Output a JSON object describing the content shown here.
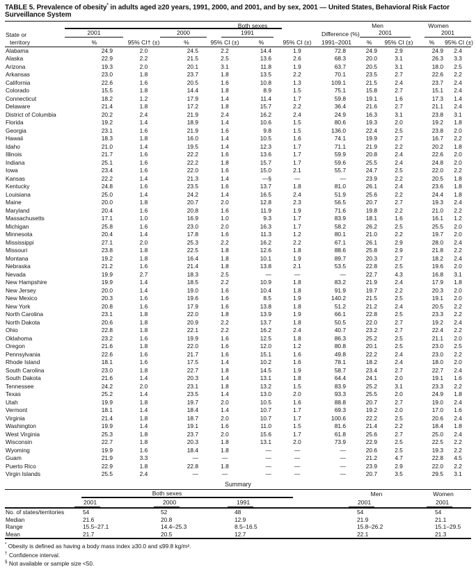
{
  "title": {
    "part1": "TABLE 5. Prevalence of obesity",
    "sup": "*",
    "part2": " in adults aged ≥20 years, 1991, 2000, and 2001, and by sex, 2001 — United States, Behavioral Risk Factor Surveillance System"
  },
  "table": {
    "header": {
      "state_line1": "State or",
      "state_line2": "territory",
      "both_sexes": "Both sexes",
      "men": "Men",
      "women": "Women",
      "y2001": "2001",
      "y2000": "2000",
      "y1991": "1991",
      "difference": "Difference (%)",
      "diff_sub": "1991–2001",
      "pct": "%",
      "ci_dagger": "95% CI† (±)",
      "ci": "95% CI (±)"
    },
    "rows": [
      {
        "state": "Alabama",
        "v": [
          "24.9",
          "2.0",
          "24.5",
          "2.2",
          "14.4",
          "1.9",
          "72.8",
          "24.9",
          "2.9",
          "24.9",
          "2.4"
        ]
      },
      {
        "state": "Alaska",
        "v": [
          "22.9",
          "2.2",
          "21.5",
          "2.5",
          "13.6",
          "2.6",
          "68.3",
          "20.0",
          "3.1",
          "26.3",
          "3.3"
        ]
      },
      {
        "state": "Arizona",
        "v": [
          "19.3",
          "2.0",
          "20.1",
          "3.1",
          "11.8",
          "1.9",
          "63.7",
          "20.5",
          "3.1",
          "18.0",
          "2.5"
        ]
      },
      {
        "state": "Arkansas",
        "v": [
          "23.0",
          "1.8",
          "23.7",
          "1.8",
          "13.5",
          "2.2",
          "70.1",
          "23.5",
          "2.7",
          "22.6",
          "2.2"
        ]
      },
      {
        "state": "California",
        "v": [
          "22.6",
          "1.6",
          "20.5",
          "1.6",
          "10.8",
          "1.3",
          "109.1",
          "21.5",
          "2.4",
          "23.7",
          "2.4"
        ]
      },
      {
        "state": "Colorado",
        "v": [
          "15.5",
          "1.8",
          "14.4",
          "1.8",
          "8.9",
          "1.5",
          "75.1",
          "15.8",
          "2.7",
          "15.1",
          "2.4"
        ]
      },
      {
        "state": "Connecticut",
        "v": [
          "18.2",
          "1.2",
          "17.9",
          "1.4",
          "11.4",
          "1.7",
          "59.8",
          "19.1",
          "1.6",
          "17.3",
          "1.4"
        ]
      },
      {
        "state": "Delaware",
        "v": [
          "21.4",
          "1.8",
          "17.2",
          "1.8",
          "15.7",
          "2.2",
          "36.4",
          "21.6",
          "2.7",
          "21.1",
          "2.4"
        ]
      },
      {
        "state": "District of Columbia",
        "v": [
          "20.2",
          "2.4",
          "21.9",
          "2.4",
          "16.2",
          "2.4",
          "24.9",
          "16.3",
          "3.1",
          "23.8",
          "3.1"
        ]
      },
      {
        "state": "Florida",
        "v": [
          "19.2",
          "1.4",
          "18.9",
          "1.4",
          "10.6",
          "1.5",
          "80.6",
          "19.3",
          "2.0",
          "19.2",
          "1.8"
        ]
      },
      {
        "state": "Georgia",
        "v": [
          "23.1",
          "1.6",
          "21.9",
          "1.6",
          "9.8",
          "1.5",
          "136.0",
          "22.4",
          "2.5",
          "23.8",
          "2.0"
        ]
      },
      {
        "state": "Hawaii",
        "v": [
          "18.3",
          "1.8",
          "16.0",
          "1.4",
          "10.5",
          "1.6",
          "74.1",
          "19.9",
          "2.7",
          "16.7",
          "2.2"
        ]
      },
      {
        "state": "Idaho",
        "v": [
          "21.0",
          "1.4",
          "19.5",
          "1.4",
          "12.3",
          "1.7",
          "71.1",
          "21.9",
          "2.2",
          "20.2",
          "1.8"
        ]
      },
      {
        "state": "Illinois",
        "v": [
          "21.7",
          "1.6",
          "22.2",
          "1.6",
          "13.6",
          "1.7",
          "59.9",
          "20.8",
          "2.4",
          "22.6",
          "2.0"
        ]
      },
      {
        "state": "Indiana",
        "v": [
          "25.1",
          "1.6",
          "22.2",
          "1.8",
          "15.7",
          "1.7",
          "59.6",
          "25.5",
          "2.4",
          "24.8",
          "2.0"
        ]
      },
      {
        "state": "Iowa",
        "v": [
          "23.4",
          "1.6",
          "22.0",
          "1.6",
          "15.0",
          "2.1",
          "55.7",
          "24.7",
          "2.5",
          "22.0",
          "2.2"
        ]
      },
      {
        "state": "Kansas",
        "v": [
          "22.2",
          "1.4",
          "21.3",
          "1.4",
          "—§",
          "—",
          "—",
          "23.9",
          "2.2",
          "20.5",
          "1.8"
        ]
      },
      {
        "state": "Kentucky",
        "v": [
          "24.8",
          "1.6",
          "23.5",
          "1.6",
          "13.7",
          "1.8",
          "81.0",
          "26.1",
          "2.4",
          "23.6",
          "1.8"
        ]
      },
      {
        "state": "Louisiana",
        "v": [
          "25.0",
          "1.4",
          "24.2",
          "1.4",
          "16.5",
          "2.4",
          "51.9",
          "25.6",
          "2.2",
          "24.4",
          "1.8"
        ]
      },
      {
        "state": "Maine",
        "v": [
          "20.0",
          "1.8",
          "20.7",
          "2.0",
          "12.8",
          "2.3",
          "56.5",
          "20.7",
          "2.7",
          "19.3",
          "2.4"
        ]
      },
      {
        "state": "Maryland",
        "v": [
          "20.4",
          "1.6",
          "20.8",
          "1.6",
          "11.9",
          "1.9",
          "71.6",
          "19.8",
          "2.2",
          "21.0",
          "2.2"
        ]
      },
      {
        "state": "Massachusetts",
        "v": [
          "17.1",
          "1.0",
          "16.9",
          "1.0",
          "9.3",
          "1.7",
          "83.9",
          "18.1",
          "1.6",
          "16.1",
          "1.2"
        ]
      },
      {
        "state": "Michigan",
        "v": [
          "25.8",
          "1.6",
          "23.0",
          "2.0",
          "16.3",
          "1.7",
          "58.2",
          "26.2",
          "2.5",
          "25.5",
          "2.0"
        ]
      },
      {
        "state": "Minnesota",
        "v": [
          "20.4",
          "1.4",
          "17.8",
          "1.6",
          "11.3",
          "1.2",
          "80.1",
          "21.0",
          "2.2",
          "19.7",
          "2.0"
        ]
      },
      {
        "state": "Mississippi",
        "v": [
          "27.1",
          "2.0",
          "25.3",
          "2.2",
          "16.2",
          "2.2",
          "67.1",
          "26.1",
          "2.9",
          "28.0",
          "2.4"
        ]
      },
      {
        "state": "Missouri",
        "v": [
          "23.8",
          "1.8",
          "22.5",
          "1.8",
          "12.6",
          "1.8",
          "88.6",
          "25.8",
          "2.9",
          "21.8",
          "2.2"
        ]
      },
      {
        "state": "Montana",
        "v": [
          "19.2",
          "1.8",
          "16.4",
          "1.8",
          "10.1",
          "1.9",
          "89.7",
          "20.3",
          "2.7",
          "18.2",
          "2.4"
        ]
      },
      {
        "state": "Nebraska",
        "v": [
          "21.2",
          "1.6",
          "21.4",
          "1.8",
          "13.8",
          "2.1",
          "53.5",
          "22.8",
          "2.5",
          "19.6",
          "2.0"
        ]
      },
      {
        "state": "Nevada",
        "v": [
          "19.9",
          "2.7",
          "18.3",
          "2.5",
          "—",
          "—",
          "—",
          "22.7",
          "4.3",
          "16.8",
          "3.1"
        ]
      },
      {
        "state": "New Hampshire",
        "v": [
          "19.9",
          "1.4",
          "18.5",
          "2.2",
          "10.9",
          "1.8",
          "83.2",
          "21.9",
          "2.4",
          "17.9",
          "1.8"
        ]
      },
      {
        "state": "New Jersey",
        "v": [
          "20.0",
          "1.4",
          "19.0",
          "1.6",
          "10.4",
          "1.8",
          "91.9",
          "19.7",
          "2.2",
          "20.3",
          "2.0"
        ]
      },
      {
        "state": "New Mexico",
        "v": [
          "20.3",
          "1.6",
          "19.6",
          "1.6",
          "8.5",
          "1.9",
          "140.2",
          "21.5",
          "2.5",
          "19.1",
          "2.0"
        ]
      },
      {
        "state": "New York",
        "v": [
          "20.8",
          "1.6",
          "17.9",
          "1.6",
          "13.8",
          "1.8",
          "51.2",
          "21.2",
          "2.4",
          "20.5",
          "2.2"
        ]
      },
      {
        "state": "North Carolina",
        "v": [
          "23.1",
          "1.8",
          "22.0",
          "1.8",
          "13.9",
          "1.9",
          "66.1",
          "22.8",
          "2.5",
          "23.3",
          "2.2"
        ]
      },
      {
        "state": "North Dakota",
        "v": [
          "20.6",
          "1.8",
          "20.9",
          "2.2",
          "13.7",
          "1.8",
          "50.5",
          "22.0",
          "2.7",
          "19.2",
          "2.4"
        ]
      },
      {
        "state": "Ohio",
        "v": [
          "22.8",
          "1.8",
          "22.1",
          "2.2",
          "16.2",
          "2.4",
          "40.7",
          "23.2",
          "2.7",
          "22.4",
          "2.2"
        ]
      },
      {
        "state": "Oklahoma",
        "v": [
          "23.2",
          "1.6",
          "19.9",
          "1.6",
          "12.5",
          "1.8",
          "86.3",
          "25.2",
          "2.5",
          "21.1",
          "2.0"
        ]
      },
      {
        "state": "Oregon",
        "v": [
          "21.6",
          "1.8",
          "22.0",
          "1.6",
          "12.0",
          "1.2",
          "80.8",
          "20.1",
          "2.5",
          "23.0",
          "2.5"
        ]
      },
      {
        "state": "Pennsylvania",
        "v": [
          "22.6",
          "1.6",
          "21.7",
          "1.6",
          "15.1",
          "1.6",
          "49.8",
          "22.2",
          "2.4",
          "23.0",
          "2.2"
        ]
      },
      {
        "state": "Rhode Island",
        "v": [
          "18.1",
          "1.6",
          "17.5",
          "1.4",
          "10.2",
          "1.6",
          "78.1",
          "18.2",
          "2.4",
          "18.0",
          "2.0"
        ]
      },
      {
        "state": "South Carolina",
        "v": [
          "23.0",
          "1.8",
          "22.7",
          "1.8",
          "14.5",
          "1.9",
          "58.7",
          "23.4",
          "2.7",
          "22.7",
          "2.4"
        ]
      },
      {
        "state": "South Dakota",
        "v": [
          "21.6",
          "1.4",
          "20.3",
          "1.4",
          "13.1",
          "1.8",
          "64.4",
          "24.1",
          "2.0",
          "19.1",
          "1.6"
        ]
      },
      {
        "state": "Tennessee",
        "v": [
          "24.2",
          "2.0",
          "23.1",
          "1.8",
          "13.2",
          "1.5",
          "83.9",
          "25.2",
          "3.1",
          "23.3",
          "2.2"
        ]
      },
      {
        "state": "Texas",
        "v": [
          "25.2",
          "1.4",
          "23.5",
          "1.4",
          "13.0",
          "2.0",
          "93.3",
          "25.5",
          "2.0",
          "24.9",
          "1.8"
        ]
      },
      {
        "state": "Utah",
        "v": [
          "19.9",
          "1.8",
          "19.7",
          "2.0",
          "10.5",
          "1.6",
          "88.8",
          "20.7",
          "2.7",
          "19.0",
          "2.4"
        ]
      },
      {
        "state": "Vermont",
        "v": [
          "18.1",
          "1.4",
          "18.4",
          "1.4",
          "10.7",
          "1.7",
          "69.3",
          "19.2",
          "2.0",
          "17.0",
          "1.6"
        ]
      },
      {
        "state": "Virginia",
        "v": [
          "21.4",
          "1.8",
          "18.7",
          "2.0",
          "10.7",
          "1.7",
          "100.6",
          "22.2",
          "2.5",
          "20.6",
          "2.4"
        ]
      },
      {
        "state": "Washington",
        "v": [
          "19.9",
          "1.4",
          "19.1",
          "1.6",
          "11.0",
          "1.5",
          "81.6",
          "21.4",
          "2.2",
          "18.4",
          "1.8"
        ]
      },
      {
        "state": "West Virginia",
        "v": [
          "25.3",
          "1.8",
          "23.7",
          "2.0",
          "15.6",
          "1.7",
          "61.8",
          "25.6",
          "2.7",
          "25.0",
          "2.4"
        ]
      },
      {
        "state": "Wisconsin",
        "v": [
          "22.7",
          "1.8",
          "20.3",
          "1.8",
          "13.1",
          "2.0",
          "73.9",
          "22.9",
          "2.5",
          "22.5",
          "2.2"
        ]
      },
      {
        "state": "Wyoming",
        "v": [
          "19.9",
          "1.6",
          "18.4",
          "1.8",
          "—",
          "—",
          "—",
          "20.6",
          "2.5",
          "19.3",
          "2.2"
        ]
      },
      {
        "state": "Guam",
        "v": [
          "21.9",
          "3.3",
          "—",
          "—",
          "—",
          "—",
          "—",
          "21.2",
          "4.7",
          "22.8",
          "4.5"
        ]
      },
      {
        "state": "Puerto Rico",
        "v": [
          "22.9",
          "1.8",
          "22.8",
          "1.8",
          "—",
          "—",
          "—",
          "23.9",
          "2.9",
          "22.0",
          "2.2"
        ]
      },
      {
        "state": "Virgin Islands",
        "v": [
          "25.5",
          "2.4",
          "—",
          "—",
          "—",
          "—",
          "—",
          "20.7",
          "3.5",
          "29.5",
          "3.1"
        ]
      }
    ]
  },
  "summary": {
    "title": "Summary",
    "header": {
      "both_sexes": "Both sexes",
      "men": "Men",
      "women": "Women",
      "y2001": "2001",
      "y2000": "2000",
      "y1991": "1991"
    },
    "rows": [
      {
        "label": "No. of states/territories",
        "v": [
          "54",
          "52",
          "48",
          "54",
          "54"
        ]
      },
      {
        "label": "Median",
        "v": [
          "21.6",
          "20.8",
          "12.9",
          "21.9",
          "21.1"
        ]
      },
      {
        "label": "Range",
        "v": [
          "15.5–27.1",
          "14.4–25.3",
          "8.5–16.5",
          "15.8–26.2",
          "15.1–29.5"
        ]
      },
      {
        "label": "Mean",
        "v": [
          "21.7",
          "20.5",
          "12.7",
          "22.1",
          "21.3"
        ]
      }
    ]
  },
  "footnotes": [
    {
      "marker": "*",
      "text": "Obesity is defined as having a body mass index ≥30.0 and ≤99.8 kg/m²."
    },
    {
      "marker": "†",
      "text": "Confidence interval."
    },
    {
      "marker": "§",
      "text": "Not available or sample size <50."
    }
  ]
}
